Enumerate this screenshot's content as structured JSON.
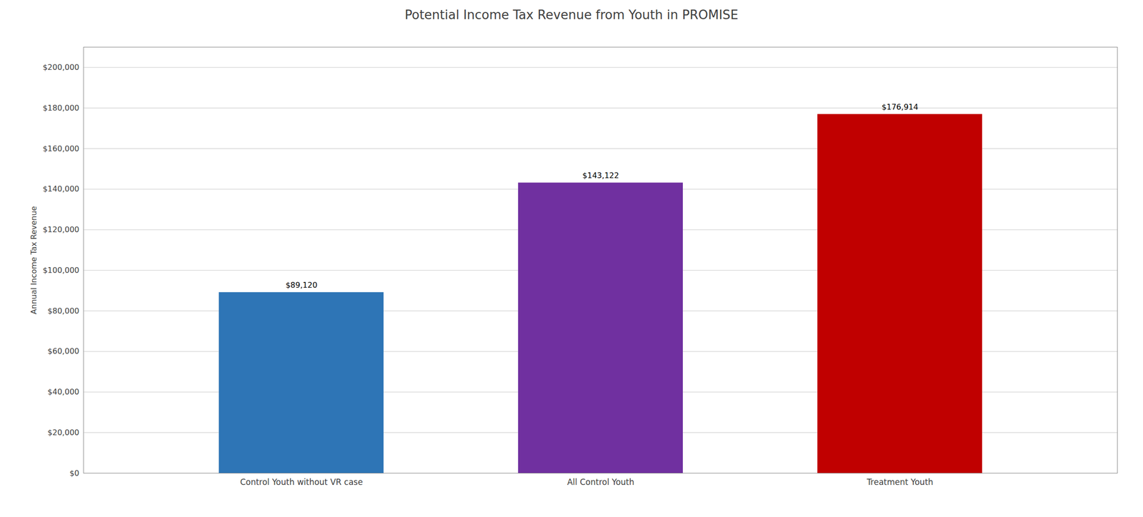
{
  "chart_data": {
    "type": "bar",
    "title": "Potential Income Tax Revenue from Youth in PROMISE",
    "ylabel": "Annual Income Tax Revenue",
    "categories": [
      "Control Youth without VR case",
      "All Control Youth",
      "Treatment Youth"
    ],
    "values": [
      89120,
      143122,
      176914
    ],
    "value_labels": [
      "$89,120",
      "$143,122",
      "$176,914"
    ],
    "data_labels": true,
    "colors": [
      "#2E75B6",
      "#7030A0",
      "#C00000"
    ],
    "ylim": [
      0,
      210000
    ],
    "yticks": [
      {
        "value": 0,
        "label": "$0"
      },
      {
        "value": 20000,
        "label": "$20,000"
      },
      {
        "value": 40000,
        "label": "$40,000"
      },
      {
        "value": 60000,
        "label": "$60,000"
      },
      {
        "value": 80000,
        "label": "$80,000"
      },
      {
        "value": 100000,
        "label": "$100,000"
      },
      {
        "value": 120000,
        "label": "$120,000"
      },
      {
        "value": 140000,
        "label": "$140,000"
      },
      {
        "value": 160000,
        "label": "$160,000"
      },
      {
        "value": 180000,
        "label": "$180,000"
      },
      {
        "value": 200000,
        "label": "$200,000"
      }
    ],
    "grid": true
  }
}
